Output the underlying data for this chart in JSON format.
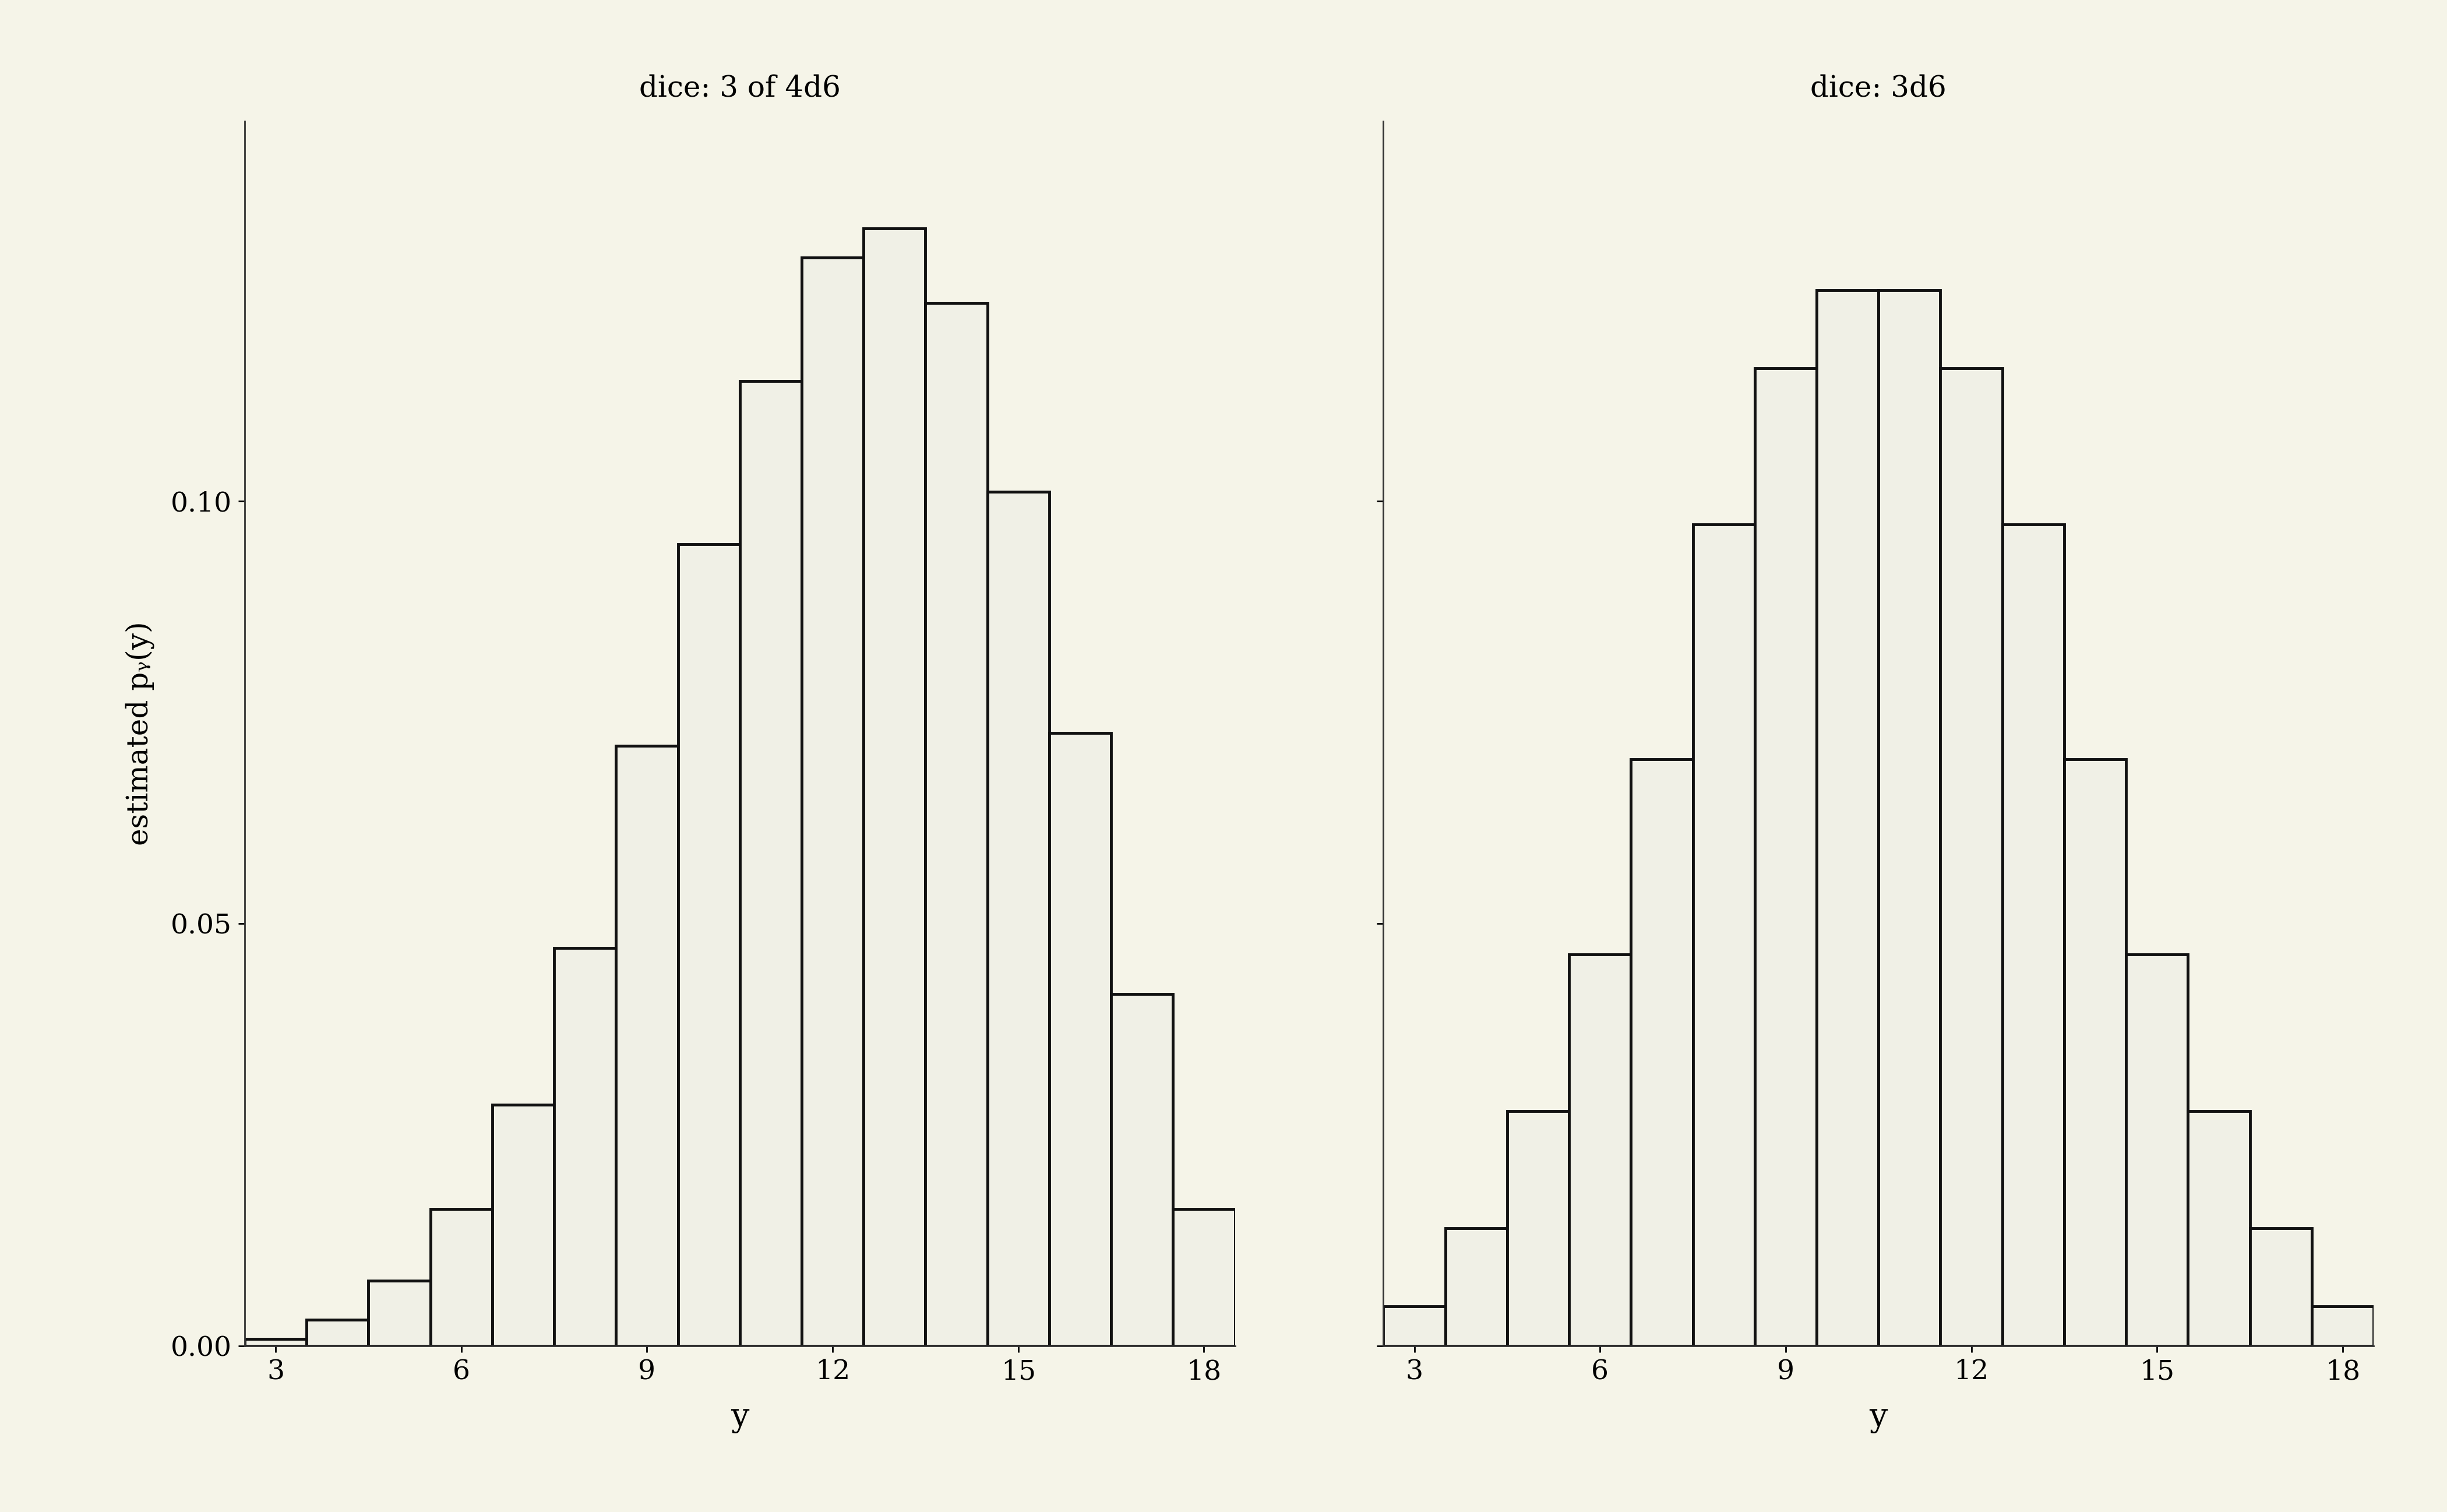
{
  "title_left": "dice: 3 of 4d6",
  "title_right": "dice: 3d6",
  "xlabel": "y",
  "ylabel": "estimated pᵧ(y)",
  "background_color": "#f5f4e8",
  "bar_facecolor": "#f0f0e6",
  "bar_edgecolor": "#111111",
  "x_values": [
    3,
    4,
    5,
    6,
    7,
    8,
    9,
    10,
    11,
    12,
    13,
    14,
    15,
    16,
    17,
    18
  ],
  "probs_3d6": [
    0.004629629629629629,
    0.013888888888888888,
    0.027777777777777776,
    0.046296296296296294,
    0.06944444444444445,
    0.09722222222222222,
    0.11574074074074074,
    0.125,
    0.125,
    0.11574074074074074,
    0.09722222222222222,
    0.06944444444444445,
    0.046296296296296294,
    0.027777777777777776,
    0.013888888888888888,
    0.004629629629629629
  ],
  "probs_3of4d6": [
    0.000771604938271605,
    0.00308641975308642,
    0.00771604938271605,
    0.016203703703703703,
    0.028549382716049385,
    0.0470679012345679,
    0.07098765432098765,
    0.09490740740740741,
    0.11419753086419752,
    0.12885802469135801,
    0.13225308641975309,
    0.12345679012345678,
    0.10108024691358025,
    0.07253086419753087,
    0.041666666666666664,
    0.016203703703703703
  ],
  "ylim": [
    0,
    0.145
  ],
  "yticks": [
    0.0,
    0.05,
    0.1
  ],
  "xticks": [
    3,
    6,
    9,
    12,
    15,
    18
  ],
  "title_fontsize": 36,
  "label_fontsize": 40,
  "tick_fontsize": 34,
  "ylabel_fontsize": 36,
  "bar_linewidth": 3.5
}
